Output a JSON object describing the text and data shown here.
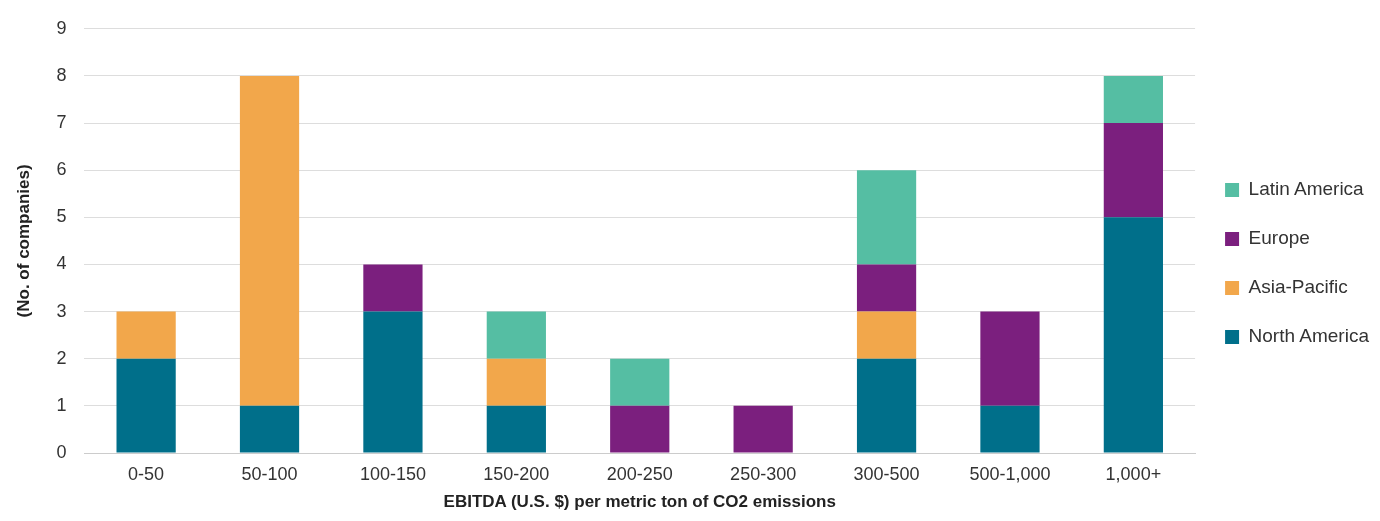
{
  "chart_data": {
    "type": "bar",
    "stacked": true,
    "xlabel": "EBITDA (U.S. $) per metric ton of CO2 emissions",
    "ylabel": "(No. of companies)",
    "categories": [
      "0-50",
      "50-100",
      "100-150",
      "150-200",
      "200-250",
      "250-300",
      "300-500",
      "500-1,000",
      "1,000+"
    ],
    "series": [
      {
        "name": "North America",
        "color": "#006f8a",
        "values": [
          2,
          1,
          3,
          1,
          null,
          null,
          2,
          1,
          5
        ]
      },
      {
        "name": "Asia-Pacific",
        "color": "#f2a74b",
        "values": [
          1,
          7,
          null,
          1,
          null,
          null,
          1,
          null,
          null
        ]
      },
      {
        "name": "Europe",
        "color": "#7b1f7e",
        "values": [
          null,
          null,
          1,
          null,
          1,
          1,
          1,
          2,
          2
        ]
      },
      {
        "name": "Latin America",
        "color": "#55bea3",
        "values": [
          null,
          null,
          null,
          1,
          1,
          null,
          2,
          null,
          1
        ]
      }
    ],
    "ylim": [
      0,
      9
    ],
    "yticks": [
      0,
      1,
      2,
      3,
      4,
      5,
      6,
      7,
      8,
      9
    ],
    "grid": "y",
    "legend": "right"
  }
}
